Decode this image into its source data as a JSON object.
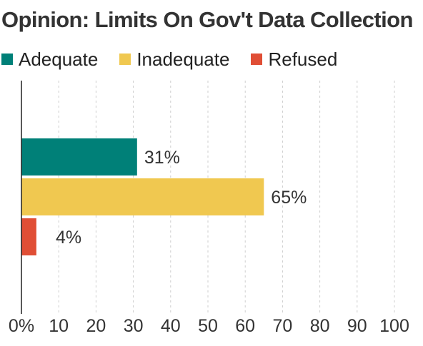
{
  "chart_data": {
    "type": "bar",
    "orientation": "horizontal",
    "title": "Opinion: Limits On Gov't Data Collection",
    "series": [
      {
        "name": "Adequate",
        "value": 31,
        "label": "31%",
        "color": "#008078"
      },
      {
        "name": "Inadequate",
        "value": 65,
        "label": "65%",
        "color": "#f0c850"
      },
      {
        "name": "Refused",
        "value": 4,
        "label": "4%",
        "color": "#e04e35"
      }
    ],
    "xlim": [
      0,
      100
    ],
    "xticks": [
      0,
      10,
      20,
      30,
      40,
      50,
      60,
      70,
      80,
      90,
      100
    ],
    "xtick_labels": [
      "0%",
      "10",
      "20",
      "30",
      "40",
      "50",
      "60",
      "70",
      "80",
      "90",
      "100"
    ],
    "grid": "vertical-dashed",
    "legend_position": "top-left"
  }
}
